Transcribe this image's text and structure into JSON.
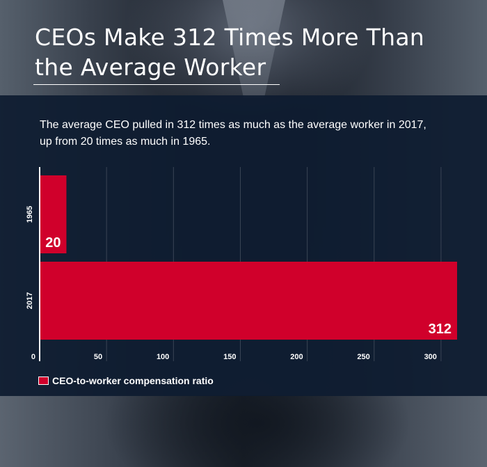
{
  "header": {
    "title_line1": "CEOs Make 312 Times More Than",
    "title_line2": "the Average Worker"
  },
  "subtitle_line1": "The average CEO pulled in 312 times as much as the average worker in 2017,",
  "subtitle_line2": "up from 20 times as much in 1965.",
  "colors": {
    "bar": "#d0002b",
    "panel": "#0e1c30",
    "grid": "#3a4555",
    "text": "#ffffff"
  },
  "chart_data": {
    "type": "bar",
    "orientation": "horizontal",
    "categories": [
      "1965",
      "2017"
    ],
    "series": [
      {
        "name": "CEO-to-worker compensation ratio",
        "values": [
          20,
          312
        ]
      }
    ],
    "data_labels": [
      "20",
      "312"
    ],
    "xlim": [
      0,
      312
    ],
    "xticks": [
      0,
      50,
      100,
      150,
      200,
      250,
      300
    ],
    "grid": true,
    "legend": "bottom-left"
  }
}
